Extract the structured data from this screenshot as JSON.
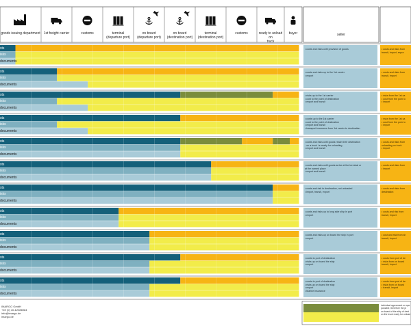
{
  "header": {
    "columns": [
      {
        "label": "goods issuing department",
        "icon": "factory-icon"
      },
      {
        "label": "1st freight carrier",
        "icon": "truck-icon"
      },
      {
        "label": "customs",
        "icon": "no-entry-icon"
      },
      {
        "label": "terminal\n(departure port)",
        "icon": "terminal-icon"
      },
      {
        "label": "on board\n(departure port)",
        "icon": "anchor-plane-icon"
      },
      {
        "label": "on board\n(destination port)",
        "icon": "anchor-plane-icon"
      },
      {
        "label": "terminal\n(destination port)",
        "icon": "terminal-icon"
      },
      {
        "label": "customs",
        "icon": "no-entry-icon"
      },
      {
        "label": "ready to unload on\ntruck",
        "icon": "truck-icon"
      },
      {
        "label": "buyer",
        "icon": "person-icon"
      }
    ],
    "seller_label": "seller"
  },
  "row_labels": [
    "sts",
    "isks",
    "documents"
  ],
  "colors": {
    "teal": "#14607a",
    "light_teal": "#7fb0c0",
    "pale_blue": "#a9cbd8",
    "orange": "#f7b414",
    "yellow": "#f2ec4a",
    "olive": "#7a8c3c"
  },
  "chart_data": {
    "type": "gantt",
    "stages": [
      "goods issuing department",
      "1st freight carrier",
      "customs",
      "terminal (departure port)",
      "on board (departure port)",
      "on board (destination port)",
      "terminal (destination port)",
      "customs",
      "ready to unload on truck",
      "buyer"
    ],
    "groups": [
      {
        "bars": [
          [
            {
              "start": 0,
              "end": 0.5,
              "color": "teal"
            },
            {
              "start": 0.5,
              "end": 9.7,
              "color": "orange"
            }
          ],
          [
            {
              "start": 0,
              "end": 0.5,
              "color": "light_teal"
            },
            {
              "start": 0.5,
              "end": 9.7,
              "color": "yellow"
            }
          ],
          [
            {
              "start": 0,
              "end": 0.5,
              "color": "pale_blue"
            },
            {
              "start": 0.5,
              "end": 9.7,
              "color": "yellow"
            }
          ]
        ],
        "seller": [
          "• costs and risks until provision of goods"
        ],
        "buyer": [
          "• costs and risks from",
          "transit, import, expor"
        ]
      },
      {
        "bars": [
          [
            {
              "start": 0,
              "end": 1.85,
              "color": "teal"
            },
            {
              "start": 1.85,
              "end": 9.7,
              "color": "orange"
            }
          ],
          [
            {
              "start": 0,
              "end": 1.85,
              "color": "light_teal"
            },
            {
              "start": 1.85,
              "end": 9.7,
              "color": "yellow"
            }
          ],
          [
            {
              "start": 0,
              "end": 2.85,
              "color": "pale_blue"
            },
            {
              "start": 2.85,
              "end": 9.7,
              "color": "yellow"
            }
          ]
        ],
        "seller": [
          "• costs and risks up to the 1st carrier",
          "• export"
        ],
        "buyer": [
          "• costs and risks from",
          "transit, import"
        ]
      },
      {
        "bars": [
          [
            {
              "start": 0,
              "end": 5.85,
              "color": "teal"
            },
            {
              "start": 5.85,
              "end": 8.85,
              "color": "olive"
            },
            {
              "start": 8.85,
              "end": 9.7,
              "color": "orange"
            }
          ],
          [
            {
              "start": 0,
              "end": 1.85,
              "color": "light_teal"
            },
            {
              "start": 1.85,
              "end": 9.7,
              "color": "yellow"
            }
          ],
          [
            {
              "start": 0,
              "end": 2.85,
              "color": "pale_blue"
            },
            {
              "start": 2.85,
              "end": 9.7,
              "color": "yellow"
            }
          ]
        ],
        "seller": [
          "• risks up to the 1st carrier",
          "• cost to the point of destination",
          "• export and transit"
        ],
        "buyer": [
          "• risks from the 1st ca",
          "• cost from the point o",
          "• import"
        ]
      },
      {
        "bars": [
          [
            {
              "start": 0,
              "end": 5.85,
              "color": "teal"
            },
            {
              "start": 5.85,
              "end": 9.7,
              "color": "orange"
            }
          ],
          [
            {
              "start": 0,
              "end": 1.85,
              "color": "light_teal"
            },
            {
              "start": 1.85,
              "end": 9.7,
              "color": "yellow"
            }
          ],
          [
            {
              "start": 0,
              "end": 2.85,
              "color": "pale_blue"
            },
            {
              "start": 2.85,
              "end": 9.7,
              "color": "yellow"
            }
          ]
        ],
        "seller": [
          "• costs up to the 1st carrier",
          "• cost to the point of destination",
          "• export and transit",
          "• transport insurance from 1st carrier to destination"
        ],
        "buyer": [
          "• risks from the 1st ca",
          "• cost from the point o",
          "• import"
        ]
      },
      {
        "bars": [
          [
            {
              "start": 0,
              "end": 5.85,
              "color": "teal"
            },
            {
              "start": 5.85,
              "end": 7.85,
              "color": "olive"
            },
            {
              "start": 7.85,
              "end": 8.85,
              "color": "orange"
            },
            {
              "start": 8.85,
              "end": 9.4,
              "color": "olive"
            },
            {
              "start": 9.4,
              "end": 9.7,
              "color": "orange"
            }
          ],
          [
            {
              "start": 0,
              "end": 5.85,
              "color": "light_teal"
            },
            {
              "start": 5.85,
              "end": 9.7,
              "color": "yellow"
            }
          ],
          [
            {
              "start": 0,
              "end": 5.85,
              "color": "pale_blue"
            },
            {
              "start": 5.85,
              "end": 9.7,
              "color": "yellow"
            }
          ]
        ],
        "seller": [
          "• costs and risks until goods reach their destination",
          "- on a truck i.e ready for unloading",
          "• export and transit"
        ],
        "buyer": [
          "• costs and risks from",
          "unloading on truck",
          "• import"
        ]
      },
      {
        "bars": [
          [
            {
              "start": 0,
              "end": 6.85,
              "color": "teal"
            },
            {
              "start": 6.85,
              "end": 9.7,
              "color": "orange"
            }
          ],
          [
            {
              "start": 0,
              "end": 6.85,
              "color": "light_teal"
            },
            {
              "start": 6.85,
              "end": 9.7,
              "color": "yellow"
            }
          ],
          [
            {
              "start": 0,
              "end": 6.85,
              "color": "pale_blue"
            },
            {
              "start": 6.85,
              "end": 9.7,
              "color": "yellow"
            }
          ]
        ],
        "seller": [
          "• costs and risks until goods arrive at the terminal or",
          "at the named place",
          "• export and transit"
        ],
        "buyer": [
          "• costs and risks from",
          "• import"
        ]
      },
      {
        "bars": [
          [
            {
              "start": 0,
              "end": 8.85,
              "color": "teal"
            },
            {
              "start": 8.85,
              "end": 9.7,
              "color": "orange"
            }
          ],
          [
            {
              "start": 0,
              "end": 8.85,
              "color": "light_teal"
            },
            {
              "start": 8.85,
              "end": 9.7,
              "color": "yellow"
            }
          ],
          [
            {
              "start": 0,
              "end": 8.85,
              "color": "pale_blue"
            },
            {
              "start": 8.85,
              "end": 9.7,
              "color": "yellow"
            }
          ]
        ],
        "seller": [
          "• costs and risk to destination, not unloaded",
          "• import, transit, export"
        ],
        "buyer": [
          "• costs and risks from",
          "destination"
        ]
      },
      {
        "bars": [
          [
            {
              "start": 0,
              "end": 3.85,
              "color": "teal"
            },
            {
              "start": 3.85,
              "end": 9.7,
              "color": "orange"
            }
          ],
          [
            {
              "start": 0,
              "end": 3.85,
              "color": "light_teal"
            },
            {
              "start": 3.85,
              "end": 9.7,
              "color": "yellow"
            }
          ],
          [
            {
              "start": 0,
              "end": 3.85,
              "color": "pale_blue"
            },
            {
              "start": 3.85,
              "end": 9.7,
              "color": "yellow"
            }
          ]
        ],
        "seller": [
          "• costs and risks up to long side ship in port",
          "• export"
        ],
        "buyer": [
          "• costs and risk from",
          "transit, import"
        ]
      },
      {
        "bars": [
          [
            {
              "start": 0,
              "end": 4.85,
              "color": "teal"
            },
            {
              "start": 4.85,
              "end": 9.7,
              "color": "orange"
            }
          ],
          [
            {
              "start": 0,
              "end": 4.85,
              "color": "light_teal"
            },
            {
              "start": 4.85,
              "end": 9.7,
              "color": "yellow"
            }
          ],
          [
            {
              "start": 0,
              "end": 4.85,
              "color": "pale_blue"
            },
            {
              "start": 4.85,
              "end": 9.7,
              "color": "yellow"
            }
          ]
        ],
        "seller": [
          "• costs and risks up on board the ship in port",
          "• export"
        ],
        "buyer": [
          "• cost and risk from sh",
          "transit, import"
        ]
      },
      {
        "bars": [
          [
            {
              "start": 0,
              "end": 5.85,
              "color": "teal"
            },
            {
              "start": 5.85,
              "end": 9.7,
              "color": "orange"
            }
          ],
          [
            {
              "start": 0,
              "end": 4.85,
              "color": "light_teal"
            },
            {
              "start": 4.85,
              "end": 9.7,
              "color": "yellow"
            }
          ],
          [
            {
              "start": 0,
              "end": 4.85,
              "color": "pale_blue"
            },
            {
              "start": 4.85,
              "end": 9.7,
              "color": "yellow"
            }
          ]
        ],
        "seller": [
          "• costs to port of destination",
          "• risks up on board the ship",
          "• export"
        ],
        "buyer": [
          "• costs from port of de",
          "• risks from on board",
          "transit, import"
        ]
      },
      {
        "bars": [
          [
            {
              "start": 0,
              "end": 5.85,
              "color": "teal"
            },
            {
              "start": 5.85,
              "end": 9.7,
              "color": "orange"
            }
          ],
          [
            {
              "start": 0,
              "end": 4.85,
              "color": "light_teal"
            },
            {
              "start": 4.85,
              "end": 9.7,
              "color": "yellow"
            }
          ],
          [
            {
              "start": 0,
              "end": 4.85,
              "color": "pale_blue"
            },
            {
              "start": 4.85,
              "end": 9.7,
              "color": "yellow"
            }
          ]
        ],
        "seller": [
          "• costs to port of destination",
          "• risks up on board the ship",
          "• export",
          "• Marine insurance"
        ],
        "buyer": [
          "• costs from port of de",
          "• risks from on board",
          "• transit, import"
        ]
      }
    ]
  },
  "footer": {
    "lines": [
      "IMARGO GmbH",
      "+49 (0) 40-12086984",
      "info@imargo.de",
      "imargo.de"
    ]
  },
  "legend": {
    "lines": [
      "individual agreement on spe",
      "possible, therefore the pl",
      "on board of the ship of dest",
      "on the truck ready for unload"
    ]
  }
}
